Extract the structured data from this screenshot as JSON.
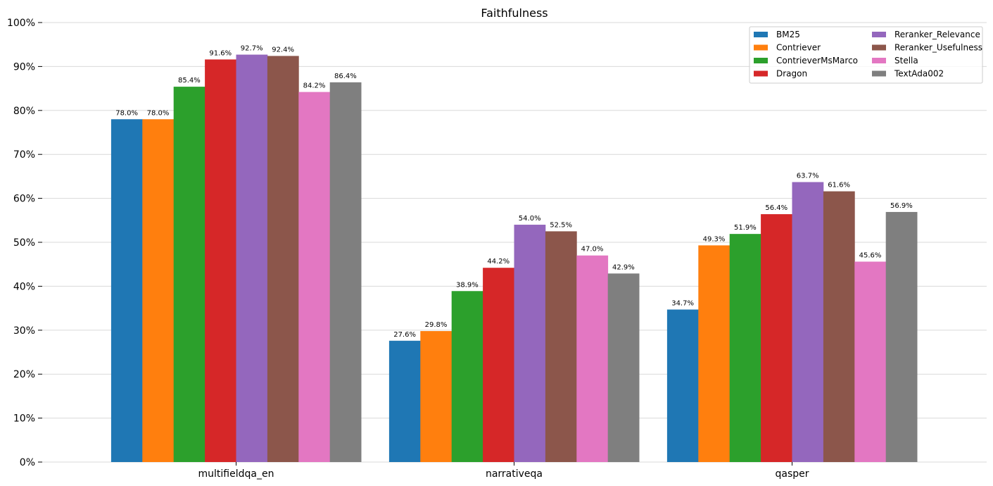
{
  "chart_data": {
    "type": "bar",
    "title": "Faithfulness",
    "xlabel": "",
    "ylabel": "",
    "ylim": [
      0,
      100
    ],
    "yticks": [
      "0%",
      "10%",
      "20%",
      "30%",
      "40%",
      "50%",
      "60%",
      "70%",
      "80%",
      "90%",
      "100%"
    ],
    "grid": true,
    "legend_position": "top-right",
    "categories": [
      "multifieldqa_en",
      "narrativeqa",
      "qasper"
    ],
    "series": [
      {
        "name": "BM25",
        "color": "#1f77b4",
        "values": [
          78.0,
          27.6,
          34.7
        ],
        "labels": [
          "78.0%",
          "27.6%",
          "34.7%"
        ]
      },
      {
        "name": "Contriever",
        "color": "#ff7f0e",
        "values": [
          78.0,
          29.8,
          49.3
        ],
        "labels": [
          "78.0%",
          "29.8%",
          "49.3%"
        ]
      },
      {
        "name": "ContrieverMsMarco",
        "color": "#2ca02c",
        "values": [
          85.4,
          38.9,
          51.9
        ],
        "labels": [
          "85.4%",
          "38.9%",
          "51.9%"
        ]
      },
      {
        "name": "Dragon",
        "color": "#d62728",
        "values": [
          91.6,
          44.2,
          56.4
        ],
        "labels": [
          "91.6%",
          "44.2%",
          "56.4%"
        ]
      },
      {
        "name": "Reranker_Relevance",
        "color": "#9467bd",
        "values": [
          92.7,
          54.0,
          63.7
        ],
        "labels": [
          "92.7%",
          "54.0%",
          "63.7%"
        ]
      },
      {
        "name": "Reranker_Usefulness",
        "color": "#8c564b",
        "values": [
          92.4,
          52.5,
          61.6
        ],
        "labels": [
          "92.4%",
          "52.5%",
          "61.6%"
        ]
      },
      {
        "name": "Stella",
        "color": "#e377c2",
        "values": [
          84.2,
          47.0,
          45.6
        ],
        "labels": [
          "84.2%",
          "47.0%",
          "45.6%"
        ]
      },
      {
        "name": "TextAda002",
        "color": "#7f7f7f",
        "values": [
          86.4,
          42.9,
          56.9
        ],
        "labels": [
          "86.4%",
          "42.9%",
          "56.9%"
        ]
      }
    ]
  }
}
